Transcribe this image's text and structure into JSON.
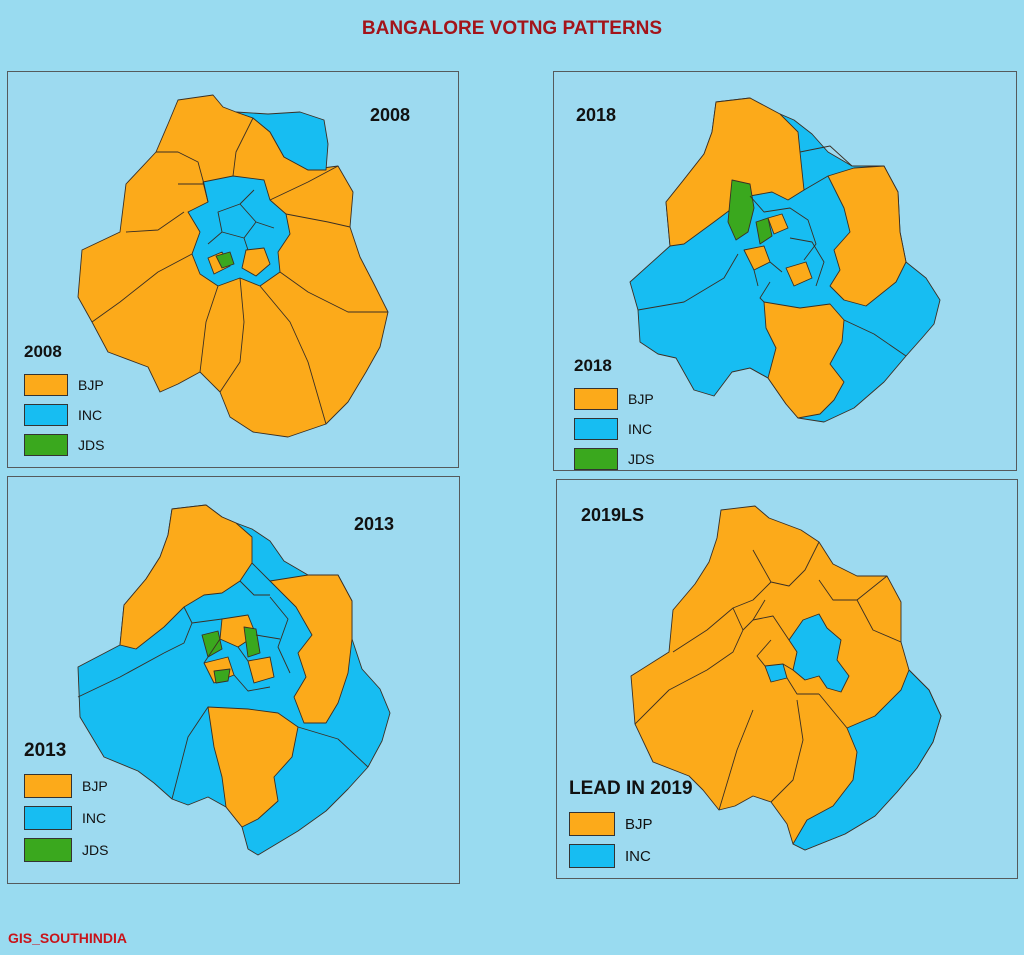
{
  "title": "BANGALORE VOTNG PATTERNS",
  "footer": "GIS_SOUTHINDIA",
  "colors": {
    "bjp": "#fcaa1a",
    "inc": "#17bdf2",
    "jds": "#3aa81e",
    "border": "#3a2f24",
    "title": "#a3141a"
  },
  "panels": [
    {
      "year": "2008",
      "legend_title": "2008",
      "legend": [
        {
          "label": "BJP",
          "color": "#fcaa1a"
        },
        {
          "label": "INC",
          "color": "#17bdf2"
        },
        {
          "label": "JDS",
          "color": "#3aa81e"
        }
      ]
    },
    {
      "year": "2018",
      "legend_title": "2018",
      "legend": [
        {
          "label": "BJP",
          "color": "#fcaa1a"
        },
        {
          "label": "INC",
          "color": "#17bdf2"
        },
        {
          "label": "JDS",
          "color": "#3aa81e"
        }
      ]
    },
    {
      "year": "2013",
      "legend_title": "2013",
      "legend": [
        {
          "label": "BJP",
          "color": "#fcaa1a"
        },
        {
          "label": "INC",
          "color": "#17bdf2"
        },
        {
          "label": "JDS",
          "color": "#3aa81e"
        }
      ]
    },
    {
      "year": "2019LS",
      "legend_title": "LEAD IN 2019",
      "legend": [
        {
          "label": "BJP",
          "color": "#fcaa1a"
        },
        {
          "label": "INC",
          "color": "#17bdf2"
        }
      ]
    }
  ]
}
